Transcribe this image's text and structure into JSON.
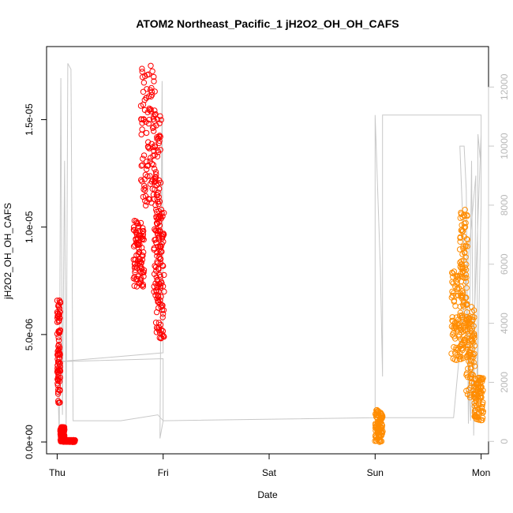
{
  "chart_data": {
    "type": "scatter",
    "title": "ATOM2 Northeast_Pacific_1 jH2O2_OH_OH_CAFS",
    "xlabel": "Date",
    "ylabel": "jH2O2_OH_OH_CAFS",
    "x_ticks": [
      "Thu",
      "Fri",
      "Sat",
      "Sun",
      "Mon"
    ],
    "x_range_days": [
      -0.1,
      4.07
    ],
    "y_left": {
      "range": [
        -5.5e-07,
        1.84e-05
      ],
      "ticks": [
        0,
        5e-06,
        1e-05,
        1.5e-05
      ],
      "tick_labels": [
        "0.0e+00",
        "5.0e-06",
        "1.0e-05",
        "1.5e-05"
      ]
    },
    "y_right": {
      "range": [
        -420,
        13370
      ],
      "ticks": [
        0,
        2000,
        4000,
        6000,
        8000,
        10000,
        12000
      ],
      "tick_labels": [
        "0",
        "2000",
        "4000",
        "6000",
        "8000",
        "10000",
        "12000"
      ],
      "color": "#c8c8c8"
    },
    "series": [
      {
        "color": "#ff0000",
        "marker": "open-circle",
        "segments": [
          {
            "day_start": 0.0,
            "day_end": 0.03,
            "y_min": 1.8e-06,
            "y_max": 6.6e-06
          },
          {
            "day_start": 0.03,
            "day_end": 0.07,
            "y_min": 0.0,
            "y_max": 7e-07
          },
          {
            "day_start": 0.07,
            "day_end": 0.17,
            "y_min": 0.0,
            "y_max": 1e-07
          },
          {
            "day_start": 0.72,
            "day_end": 0.82,
            "y_min": 7.2e-06,
            "y_max": 1.03e-05
          },
          {
            "day_start": 0.79,
            "day_end": 0.92,
            "y_min": 1.1e-05,
            "y_max": 1.78e-05
          },
          {
            "day_start": 0.91,
            "day_end": 0.98,
            "y_min": 6.5e-06,
            "y_max": 1.55e-05
          },
          {
            "day_start": 0.93,
            "day_end": 1.01,
            "y_min": 4.8e-06,
            "y_max": 1.1e-05
          }
        ]
      },
      {
        "color": "#ff8c00",
        "marker": "open-circle",
        "segments": [
          {
            "day_start": 3.0,
            "day_end": 3.07,
            "y_min": 0.0,
            "y_max": 1.5e-06
          },
          {
            "day_start": 3.72,
            "day_end": 3.83,
            "y_min": 3.8e-06,
            "y_max": 8.3e-06
          },
          {
            "day_start": 3.8,
            "day_end": 3.87,
            "y_min": 4.5e-06,
            "y_max": 1.09e-05
          },
          {
            "day_start": 3.86,
            "day_end": 3.94,
            "y_min": 2e-06,
            "y_max": 6.3e-06
          },
          {
            "day_start": 3.93,
            "day_end": 4.02,
            "y_min": 1e-06,
            "y_max": 3e-06
          }
        ]
      },
      {
        "color": "#c8c8c8",
        "marker": "line",
        "axis": "right",
        "points": [
          [
            0.0,
            2700
          ],
          [
            0.02,
            200
          ],
          [
            0.035,
            12300
          ],
          [
            0.05,
            900
          ],
          [
            0.07,
            9500
          ],
          [
            0.085,
            200
          ],
          [
            0.1,
            12800
          ],
          [
            0.13,
            12600
          ],
          [
            0.15,
            700
          ],
          [
            0.6,
            700
          ],
          [
            0.95,
            900
          ],
          [
            1.0,
            700
          ],
          [
            0.97,
            100
          ],
          [
            0.99,
            12200
          ],
          [
            1.0,
            3000
          ],
          [
            0.0,
            2700
          ],
          [
            1.0,
            2800
          ],
          [
            1.0,
            700
          ],
          [
            3.0,
            800
          ],
          [
            3.0,
            11050
          ],
          [
            3.05,
            5800
          ],
          [
            3.07,
            2200
          ],
          [
            3.07,
            11050
          ],
          [
            4.0,
            11050
          ],
          [
            4.0,
            9800
          ],
          [
            4.0,
            8000
          ],
          [
            3.96,
            800
          ],
          [
            3.97,
            10400
          ],
          [
            3.99,
            9600
          ],
          [
            4.0,
            10400
          ],
          [
            3.9,
            700
          ],
          [
            3.8,
            10000
          ],
          [
            3.84,
            10000
          ],
          [
            3.86,
            8500
          ],
          [
            3.88,
            600
          ],
          [
            3.91,
            9500
          ],
          [
            3.93,
            200
          ],
          [
            3.95,
            9000
          ],
          [
            3.74,
            800
          ],
          [
            3.0,
            800
          ]
        ]
      }
    ],
    "grid": false
  }
}
